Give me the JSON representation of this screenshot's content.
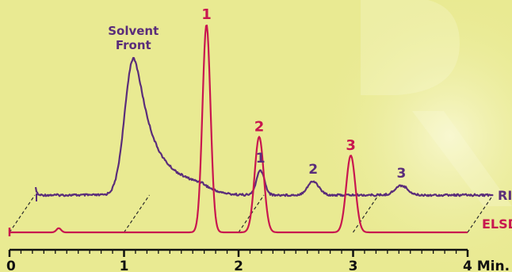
{
  "colors": {
    "background": "#e9ea92",
    "glow": "#f7f6c6",
    "purple": "#5a2d7a",
    "red": "#c8164f",
    "axis": "#111111",
    "dashed": "#2a2a2a"
  },
  "chart_data": {
    "type": "line",
    "title": "",
    "xlabel": "",
    "ylabel": "",
    "xlim": [
      0,
      4
    ],
    "x_ticks": [
      {
        "value": 0,
        "label": "0"
      },
      {
        "value": 1,
        "label": "1"
      },
      {
        "value": 2,
        "label": "2"
      },
      {
        "value": 3,
        "label": "3"
      },
      {
        "value": 4,
        "label": "4 Min."
      }
    ],
    "series": [
      {
        "name": "RI",
        "color": "#5a2d7a",
        "baseline": 0.0,
        "noise": true,
        "peaks": [
          {
            "x": 0.0,
            "height": 0.06,
            "width": 0.012
          },
          {
            "x": 0.86,
            "height": 1.0,
            "width": 0.075,
            "tail": 0.2
          },
          {
            "x": 1.97,
            "height": 0.18,
            "width": 0.035
          },
          {
            "x": 2.43,
            "height": 0.1,
            "width": 0.05
          },
          {
            "x": 3.2,
            "height": 0.07,
            "width": 0.055
          }
        ],
        "annotations": [
          {
            "text": "Solvent",
            "x": 0.86,
            "row": 0
          },
          {
            "text": "Front",
            "x": 0.86,
            "row": 1
          },
          {
            "text": "1",
            "x": 1.97,
            "row": 2
          },
          {
            "text": "2",
            "x": 2.43,
            "row": 2
          },
          {
            "text": "3",
            "x": 3.2,
            "row": 2
          }
        ],
        "label": "RI"
      },
      {
        "name": "ELSD",
        "color": "#c8164f",
        "baseline": 0.0,
        "noise": false,
        "peaks": [
          {
            "x": 0.43,
            "height": 0.02,
            "width": 0.02
          },
          {
            "x": 1.72,
            "height": 1.0,
            "width": 0.035
          },
          {
            "x": 2.18,
            "height": 0.46,
            "width": 0.04
          },
          {
            "x": 2.98,
            "height": 0.37,
            "width": 0.04
          }
        ],
        "annotations": [
          {
            "text": "1",
            "x": 1.72
          },
          {
            "text": "2",
            "x": 2.18
          },
          {
            "text": "3",
            "x": 2.98
          }
        ],
        "label": "ELSD"
      }
    ],
    "grid": false,
    "legend": "right, inline"
  }
}
